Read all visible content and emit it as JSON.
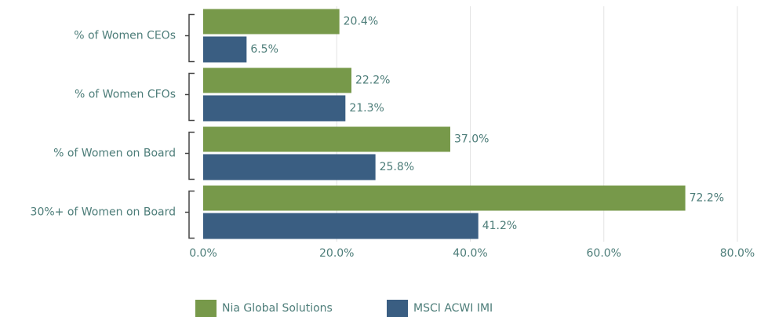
{
  "chart_data": {
    "type": "bar",
    "orientation": "horizontal",
    "categories": [
      "% of Women CEOs",
      "% of Women CFOs",
      "% of Women on Board",
      "30%+ of Women on Board"
    ],
    "series": [
      {
        "name": "Nia Global Solutions",
        "color": "#77994a",
        "values": [
          20.4,
          22.2,
          37.0,
          72.2
        ],
        "value_labels": [
          "20.4%",
          "22.2%",
          "37.0%",
          "72.2%"
        ]
      },
      {
        "name": "MSCI ACWI IMI",
        "color": "#3a5e82",
        "values": [
          6.5,
          21.3,
          25.8,
          41.2
        ],
        "value_labels": [
          "6.5%",
          "21.3%",
          "25.8%",
          "41.2%"
        ]
      }
    ],
    "xlim": [
      0,
      80
    ],
    "xticks": [
      {
        "value": 0,
        "label": "0.0%"
      },
      {
        "value": 20,
        "label": "20.0%"
      },
      {
        "value": 40,
        "label": "40.0%"
      },
      {
        "value": 60,
        "label": "60.0%"
      },
      {
        "value": 80,
        "label": "80.0%"
      }
    ],
    "grid": true,
    "legend": "bottom"
  }
}
